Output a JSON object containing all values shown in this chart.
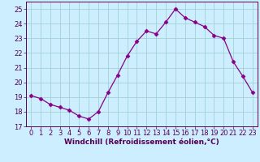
{
  "x": [
    0,
    1,
    2,
    3,
    4,
    5,
    6,
    7,
    8,
    9,
    10,
    11,
    12,
    13,
    14,
    15,
    16,
    17,
    18,
    19,
    20,
    21,
    22,
    23
  ],
  "y": [
    19.1,
    18.9,
    18.5,
    18.3,
    18.1,
    17.7,
    17.5,
    18.0,
    19.3,
    20.5,
    21.8,
    22.8,
    23.5,
    23.3,
    24.1,
    25.0,
    24.4,
    24.1,
    23.8,
    23.2,
    23.0,
    21.4,
    20.4,
    19.3
  ],
  "line_color": "#880088",
  "marker": "D",
  "marker_size": 2.5,
  "bg_color": "#cceeff",
  "grid_color": "#99cccc",
  "xlabel": "Windchill (Refroidissement éolien,°C)",
  "ylim": [
    17,
    25.5
  ],
  "yticks": [
    17,
    18,
    19,
    20,
    21,
    22,
    23,
    24,
    25
  ],
  "xticks": [
    0,
    1,
    2,
    3,
    4,
    5,
    6,
    7,
    8,
    9,
    10,
    11,
    12,
    13,
    14,
    15,
    16,
    17,
    18,
    19,
    20,
    21,
    22,
    23
  ],
  "axis_label_fontsize": 6.5,
  "tick_fontsize": 6.0
}
